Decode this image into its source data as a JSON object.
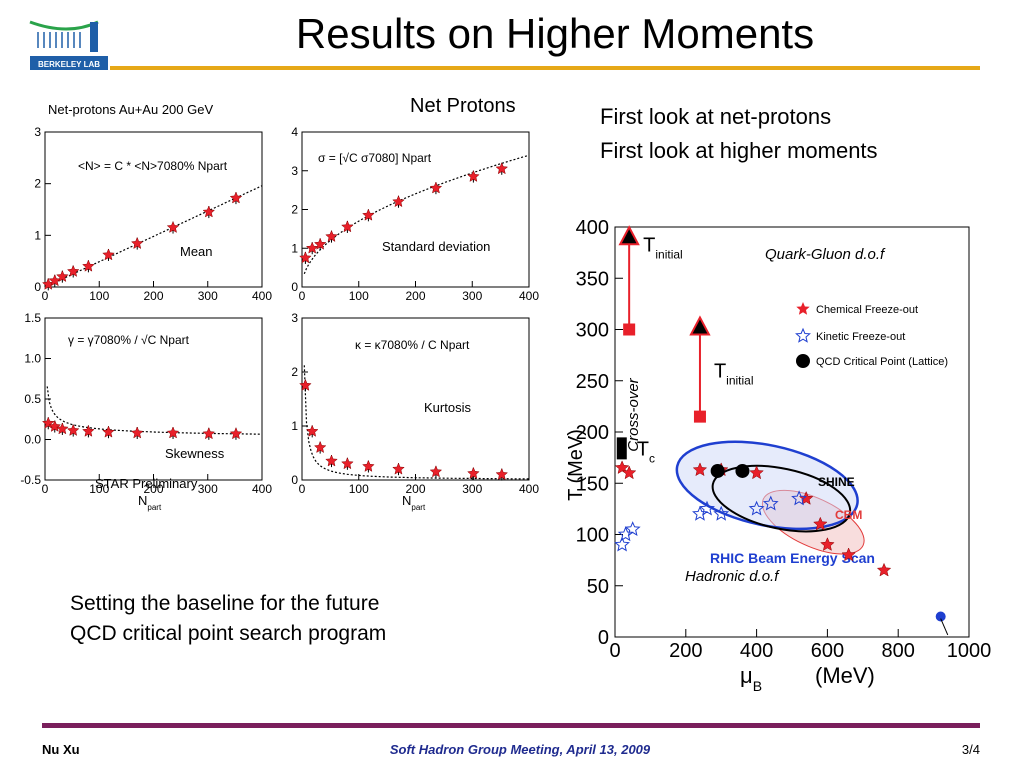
{
  "header": {
    "title": "Results on Higher Moments",
    "logo_text": "BERKELEY LAB"
  },
  "net_protons_panel": {
    "label": "Net Protons",
    "figure_title": "Net-protons Au+Au 200 GeV",
    "preliminary": "STAR Preliminary",
    "xlabel": "N",
    "xlabel_sub": "part",
    "xticks": [
      "0",
      "100",
      "200",
      "300",
      "400"
    ]
  },
  "bullets": [
    "First look at net-protons",
    "First look at higher moments"
  ],
  "baseline_text": [
    "Setting the baseline for the future",
    "QCD critical point search program"
  ],
  "phase_diagram": {
    "xlabel": "μ",
    "xlabel_sub": "B",
    "xlabel_unit": " (MeV)",
    "ylabel": "T (MeV)",
    "qgp_label": "Quark-Gluon d.o.f",
    "hadronic_label": "Hadronic d.o.f",
    "crossover_label": "Cross-over",
    "t_initial": "T",
    "t_initial_sub": "initial",
    "tc": "T",
    "tc_sub": "c",
    "rhic_label": "RHIC Beam Energy Scan",
    "shine_label": "SHINE",
    "cbm_label": "CBM",
    "legend": [
      "Chemical Freeze-out",
      "Kinetic Freeze-out",
      "QCD Critical Point (Lattice)"
    ]
  },
  "footer": {
    "left": "Nu Xu",
    "center": "Soft Hadron Group Meeting, April 13, 2009",
    "right": "3/4"
  },
  "chart_data": [
    {
      "type": "scatter",
      "name": "mean",
      "label": "Mean",
      "formula": "<N> = C * <N>7080% Npart",
      "x": [
        6,
        18,
        32,
        52,
        80,
        117,
        170,
        236,
        302,
        352
      ],
      "y": [
        0.05,
        0.12,
        0.2,
        0.3,
        0.4,
        0.62,
        0.84,
        1.15,
        1.45,
        1.72
      ],
      "xlim": [
        0,
        400
      ],
      "ylim": [
        0,
        3
      ],
      "yticks": [
        "0",
        "1",
        "2",
        "3"
      ]
    },
    {
      "type": "scatter",
      "name": "standard-deviation",
      "label": "Standard deviation",
      "formula": "σ = [√C σ7080] Npart",
      "x": [
        6,
        18,
        32,
        52,
        80,
        117,
        170,
        236,
        302,
        352
      ],
      "y": [
        0.75,
        1.0,
        1.1,
        1.3,
        1.55,
        1.85,
        2.2,
        2.55,
        2.85,
        3.05
      ],
      "xlim": [
        0,
        400
      ],
      "ylim": [
        0,
        4
      ],
      "yticks": [
        "0",
        "1",
        "2",
        "3",
        "4"
      ]
    },
    {
      "type": "scatter",
      "name": "skewness",
      "label": "Skewness",
      "formula": "γ = γ7080% / √C Npart",
      "x": [
        6,
        18,
        32,
        52,
        80,
        117,
        170,
        236,
        302,
        352
      ],
      "y": [
        0.2,
        0.16,
        0.13,
        0.11,
        0.1,
        0.09,
        0.08,
        0.08,
        0.07,
        0.07
      ],
      "xlim": [
        0,
        400
      ],
      "ylim": [
        -0.5,
        1.5
      ],
      "yticks": [
        "-0.5",
        "0.0",
        "0.5",
        "1.0",
        "1.5"
      ]
    },
    {
      "type": "scatter",
      "name": "kurtosis",
      "label": "Kurtosis",
      "formula": "κ = κ7080% / C Npart",
      "x": [
        6,
        18,
        32,
        52,
        80,
        117,
        170,
        236,
        302,
        352
      ],
      "y": [
        1.75,
        0.9,
        0.6,
        0.35,
        0.3,
        0.25,
        0.2,
        0.15,
        0.12,
        0.1
      ],
      "xlim": [
        0,
        400
      ],
      "ylim": [
        0,
        3
      ],
      "yticks": [
        "0",
        "1",
        "2",
        "3"
      ]
    },
    {
      "type": "scatter",
      "name": "phase-diagram",
      "xlim": [
        0,
        1000
      ],
      "ylim": [
        0,
        400
      ],
      "xticks": [
        "0",
        "200",
        "400",
        "600",
        "800",
        "1000"
      ],
      "yticks": [
        "0",
        "50",
        "100",
        "150",
        "200",
        "250",
        "300",
        "350",
        "400"
      ],
      "series": [
        {
          "name": "Chemical Freeze-out",
          "x": [
            20,
            40,
            240,
            300,
            400,
            540,
            580,
            600,
            660,
            760
          ],
          "y": [
            165,
            160,
            163,
            163,
            160,
            135,
            110,
            90,
            80,
            65
          ]
        },
        {
          "name": "Kinetic Freeze-out",
          "x": [
            20,
            30,
            50,
            240,
            260,
            300,
            400,
            440,
            520
          ],
          "y": [
            90,
            100,
            105,
            120,
            125,
            120,
            125,
            130,
            135
          ]
        },
        {
          "name": "QCD Critical Point (Lattice)",
          "x": [
            290,
            360
          ],
          "y": [
            162,
            162
          ]
        }
      ],
      "t_initial_arrows": [
        {
          "x": 40,
          "from": 300,
          "to": 390
        },
        {
          "x": 240,
          "from": 215,
          "to": 302
        }
      ],
      "tc_y": 185
    }
  ]
}
